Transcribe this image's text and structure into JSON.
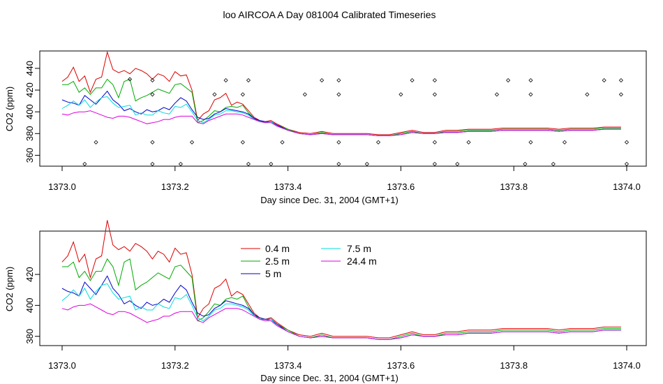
{
  "title": "loo AIRCOA A  Day 081004  Calibrated Timeseries",
  "chart_data": [
    {
      "type": "line",
      "xlabel": "Day since Dec. 31, 2004 (GMT+1)",
      "ylabel": "CO2 (ppm)",
      "xlim": [
        1373.0,
        1374.0
      ],
      "ylim": [
        350,
        456
      ],
      "xticks": [
        "1373.0",
        "1373.2",
        "1373.4",
        "1373.6",
        "1373.8",
        "1374.0"
      ],
      "yticks": [
        "360",
        "380",
        "400",
        "420",
        "440"
      ],
      "x": [
        1373.0,
        1373.01,
        1373.02,
        1373.03,
        1373.04,
        1373.05,
        1373.06,
        1373.07,
        1373.08,
        1373.09,
        1373.1,
        1373.11,
        1373.12,
        1373.13,
        1373.14,
        1373.15,
        1373.16,
        1373.17,
        1373.18,
        1373.19,
        1373.2,
        1373.21,
        1373.22,
        1373.23,
        1373.24,
        1373.25,
        1373.26,
        1373.27,
        1373.28,
        1373.29,
        1373.3,
        1373.31,
        1373.32,
        1373.33,
        1373.34,
        1373.35,
        1373.36,
        1373.37,
        1373.38,
        1373.4,
        1373.42,
        1373.44,
        1373.46,
        1373.48,
        1373.5,
        1373.52,
        1373.54,
        1373.56,
        1373.58,
        1373.6,
        1373.62,
        1373.64,
        1373.66,
        1373.68,
        1373.7,
        1373.72,
        1373.74,
        1373.76,
        1373.78,
        1373.8,
        1373.82,
        1373.84,
        1373.86,
        1373.88,
        1373.9,
        1373.92,
        1373.94,
        1373.96,
        1373.98,
        1373.99
      ],
      "series": [
        {
          "name": "0.4 m",
          "color": "#dd0000",
          "values": [
            428,
            432,
            441,
            428,
            433,
            418,
            430,
            432,
            455,
            439,
            436,
            438,
            435,
            440,
            438,
            435,
            430,
            435,
            433,
            428,
            437,
            433,
            434,
            420,
            392,
            398,
            401,
            411,
            413,
            417,
            406,
            409,
            407,
            401,
            395,
            392,
            391,
            392,
            389,
            384,
            381,
            380,
            382,
            380,
            380,
            380,
            380,
            379,
            379,
            381,
            383,
            381,
            381,
            383,
            383,
            384,
            384,
            384,
            385,
            385,
            385,
            385,
            385,
            384,
            385,
            385,
            385,
            386,
            386,
            386
          ]
        },
        {
          "name": "2.5 m",
          "color": "#00aa00",
          "values": [
            425,
            425,
            428,
            418,
            422,
            416,
            422,
            422,
            430,
            425,
            413,
            428,
            430,
            410,
            413,
            415,
            418,
            421,
            419,
            417,
            425,
            426,
            422,
            418,
            390,
            392,
            396,
            401,
            400,
            404,
            405,
            404,
            406,
            399,
            394,
            391,
            391,
            391,
            388,
            384,
            380,
            379,
            381,
            379,
            379,
            379,
            379,
            378,
            378,
            380,
            382,
            380,
            380,
            382,
            382,
            383,
            383,
            383,
            384,
            384,
            384,
            384,
            384,
            383,
            384,
            384,
            384,
            385,
            385,
            385
          ]
        },
        {
          "name": "5 m",
          "color": "#0000cc",
          "values": [
            411,
            409,
            408,
            406,
            415,
            411,
            407,
            413,
            419,
            411,
            407,
            401,
            403,
            400,
            398,
            402,
            400,
            401,
            404,
            402,
            408,
            413,
            410,
            402,
            395,
            393,
            394,
            398,
            400,
            403,
            402,
            401,
            400,
            398,
            394,
            392,
            391,
            391,
            388,
            383,
            380,
            379,
            380,
            379,
            379,
            379,
            379,
            378,
            378,
            379,
            381,
            380,
            380,
            381,
            381,
            382,
            382,
            382,
            383,
            383,
            383,
            383,
            383,
            382,
            383,
            383,
            383,
            384,
            384,
            384
          ]
        },
        {
          "name": "7.5 m",
          "color": "#00dddd",
          "values": [
            403,
            406,
            410,
            406,
            411,
            404,
            409,
            413,
            414,
            408,
            404,
            405,
            406,
            397,
            399,
            397,
            397,
            401,
            399,
            398,
            405,
            404,
            407,
            400,
            392,
            390,
            393,
            397,
            398,
            401,
            401,
            400,
            399,
            397,
            393,
            391,
            390,
            391,
            387,
            383,
            380,
            379,
            380,
            379,
            379,
            379,
            379,
            378,
            378,
            379,
            381,
            380,
            380,
            381,
            381,
            382,
            382,
            382,
            383,
            383,
            383,
            383,
            383,
            382,
            383,
            383,
            383,
            384,
            384,
            384
          ]
        },
        {
          "name": "24.4 m",
          "color": "#dd00dd",
          "values": [
            398,
            397,
            399,
            400,
            400,
            401,
            399,
            397,
            395,
            394,
            396,
            396,
            395,
            393,
            391,
            389,
            390,
            391,
            393,
            393,
            395,
            396,
            396,
            396,
            390,
            389,
            392,
            394,
            396,
            398,
            398,
            398,
            397,
            395,
            393,
            391,
            390,
            390,
            387,
            383,
            380,
            379,
            380,
            379,
            379,
            379,
            379,
            378,
            378,
            379,
            381,
            380,
            380,
            381,
            381,
            382,
            382,
            382,
            383,
            383,
            383,
            383,
            383,
            382,
            383,
            383,
            383,
            384,
            384,
            384
          ]
        }
      ],
      "points_x": [
        1373.04,
        1373.06,
        1373.12,
        1373.16,
        1373.16,
        1373.16,
        1373.16,
        1373.21,
        1373.23,
        1373.27,
        1373.29,
        1373.32,
        1373.32,
        1373.33,
        1373.33,
        1373.37,
        1373.39,
        1373.43,
        1373.46,
        1373.49,
        1373.49,
        1373.49,
        1373.49,
        1373.54,
        1373.56,
        1373.6,
        1373.62,
        1373.66,
        1373.66,
        1373.66,
        1373.66,
        1373.7,
        1373.72,
        1373.77,
        1373.79,
        1373.82,
        1373.83,
        1373.83,
        1373.83,
        1373.87,
        1373.89,
        1373.93,
        1373.96,
        1373.99,
        1373.99,
        1374.0,
        1374.0
      ],
      "points_y": [
        352,
        372,
        430,
        352,
        372,
        416,
        429,
        352,
        372,
        416,
        429,
        372,
        416,
        429,
        352,
        352,
        372,
        416,
        429,
        352,
        372,
        416,
        429,
        352,
        372,
        416,
        429,
        352,
        372,
        416,
        429,
        352,
        372,
        416,
        429,
        352,
        372,
        416,
        429,
        352,
        372,
        416,
        429,
        416,
        429,
        372,
        352
      ]
    },
    {
      "type": "line",
      "xlabel": "Day since Dec. 31, 2004 (GMT+1)",
      "ylabel": "CO2 (ppm)",
      "xlim": [
        1373.0,
        1374.0
      ],
      "ylim": [
        374,
        448
      ],
      "xticks": [
        "1373.0",
        "1373.2",
        "1373.4",
        "1373.6",
        "1373.8",
        "1374.0"
      ],
      "yticks": [
        "380",
        "400",
        "420"
      ],
      "legend": {
        "entries": [
          {
            "label": "0.4 m",
            "color": "#dd0000"
          },
          {
            "label": "7.5 m",
            "color": "#00dddd"
          },
          {
            "label": "2.5 m",
            "color": "#00aa00"
          },
          {
            "label": "24.4 m",
            "color": "#dd00dd"
          },
          {
            "label": "5 m",
            "color": "#0000cc"
          }
        ]
      }
    }
  ]
}
